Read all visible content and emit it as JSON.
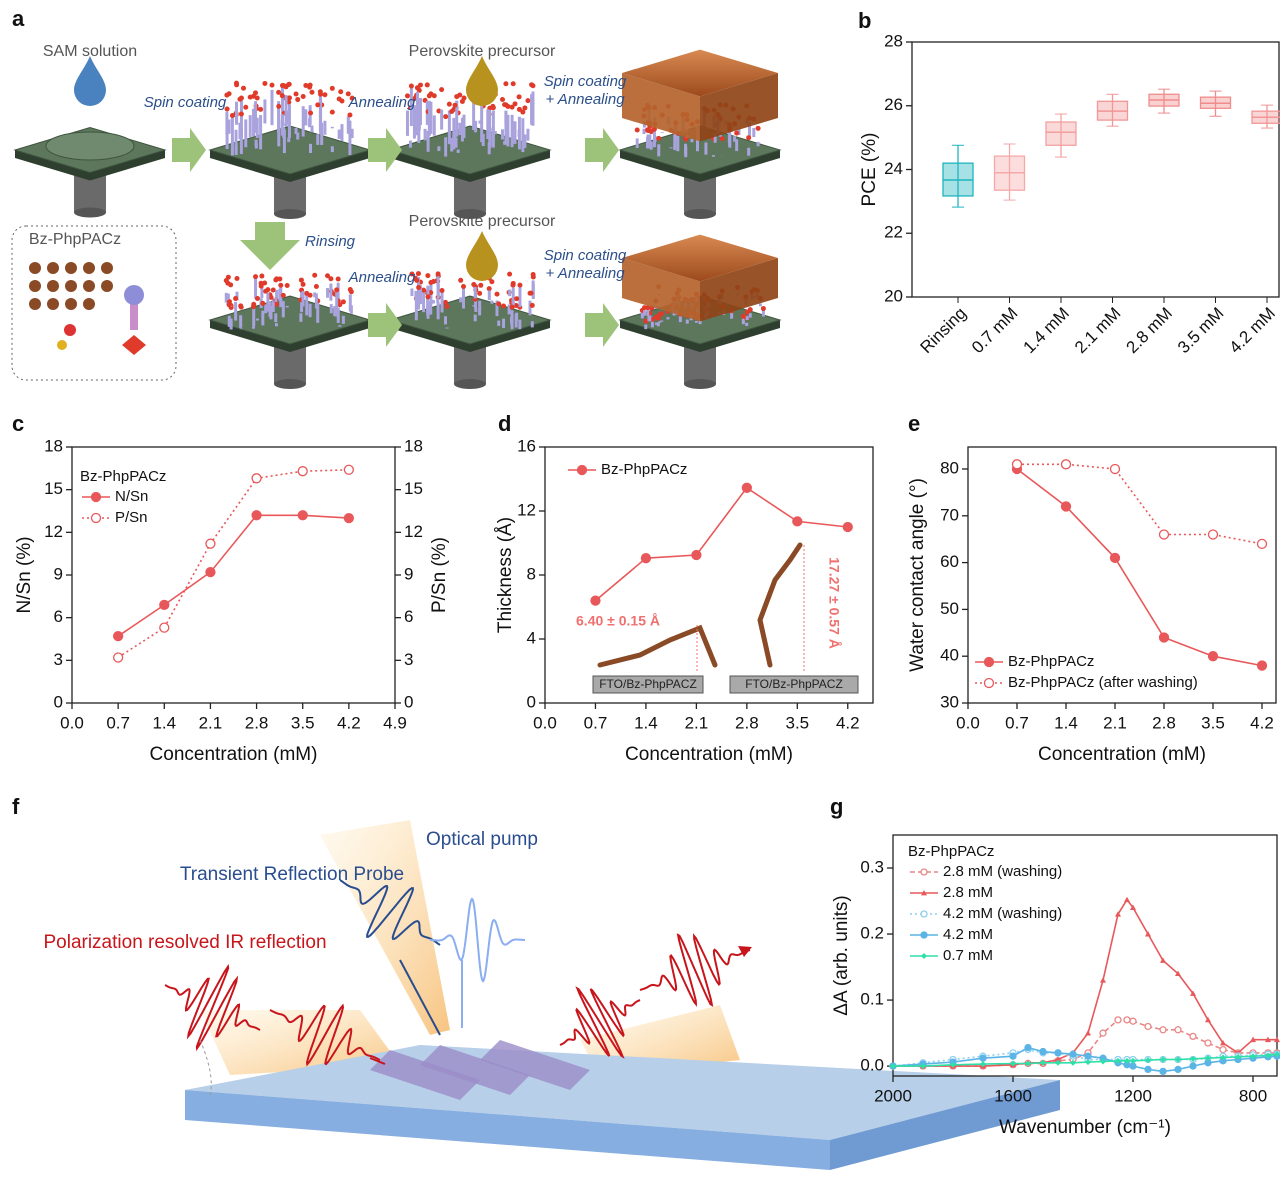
{
  "diagrams": {
    "a": {
      "label": "a",
      "texts": [
        "SAM solution",
        "Spin coating",
        "Annealing",
        "Perovskite precursor",
        "Spin coating",
        "+ Annealing",
        "Bz-PhpPACz",
        "Rinsing",
        "Annealing",
        "Perovskite precursor",
        "Spin coating",
        "+ Annealing"
      ]
    },
    "f": {
      "label": "f",
      "texts": [
        "Optical pump",
        "Transient Reflection Probe",
        "Polarization resolved IR reflection"
      ]
    }
  },
  "chart_data": [
    {
      "panel": "b",
      "type": "box",
      "ylabel": "PCE (%)",
      "categories": [
        "Rinsing",
        "0.7 mM",
        "1.4 mM",
        "2.1 mM",
        "2.8 mM",
        "3.5 mM",
        "4.2 mM"
      ],
      "boxes": [
        {
          "min": 22.82,
          "q1": 23.17,
          "median": 23.67,
          "q3": 24.2,
          "max": 24.76
        },
        {
          "min": 23.04,
          "q1": 23.35,
          "median": 23.9,
          "q3": 24.42,
          "max": 24.8
        },
        {
          "min": 24.39,
          "q1": 24.76,
          "median": 25.17,
          "q3": 25.49,
          "max": 25.74
        },
        {
          "min": 25.36,
          "q1": 25.55,
          "median": 25.83,
          "q3": 26.14,
          "max": 26.36
        },
        {
          "min": 25.77,
          "q1": 25.99,
          "median": 26.18,
          "q3": 26.36,
          "max": 26.52
        },
        {
          "min": 25.67,
          "q1": 25.92,
          "median": 26.08,
          "q3": 26.27,
          "max": 26.46
        },
        {
          "min": 25.3,
          "q1": 25.45,
          "median": 25.64,
          "q3": 25.83,
          "max": 26.02
        }
      ],
      "colors": [
        "#1fb5bf",
        "#f4a9a9",
        "#f3a0a0",
        "#f29696",
        "#f08c8c",
        "#f08c8c",
        "#f29696"
      ],
      "ylim": [
        20,
        28
      ],
      "yticks": [
        20,
        22,
        24,
        26,
        28
      ]
    },
    {
      "panel": "c",
      "type": "line",
      "xlabel": "Concentration (mM)",
      "ylabel": "N/Sn (%)",
      "y2label": "P/Sn (%)",
      "legend_title": "Bz-PhpPACz",
      "legend": "upper left",
      "x": [
        0.7,
        1.4,
        2.1,
        2.8,
        3.5,
        4.2
      ],
      "series": [
        {
          "name": "N/Sn",
          "color": "#e8585a",
          "marker": "circle",
          "line_style": "solid",
          "values": [
            4.7,
            6.9,
            9.2,
            13.2,
            13.2,
            13.0
          ]
        },
        {
          "name": "P/Sn",
          "color": "#e8585a",
          "marker": "circle-open",
          "line_style": "dotted",
          "axis": "y2",
          "values": [
            3.2,
            5.3,
            11.2,
            15.8,
            16.3,
            16.4
          ]
        }
      ],
      "xlim": [
        0,
        4.9
      ],
      "xticks": [
        {
          "value": 0,
          "label": "0.0"
        },
        0.7,
        1.4,
        2.1,
        2.8,
        3.5,
        4.2,
        4.9
      ],
      "ylim": [
        0,
        18
      ],
      "yticks": [
        0,
        3,
        6,
        9,
        12,
        15,
        18
      ],
      "y2lim": [
        0,
        18
      ],
      "y2ticks": [
        0,
        3,
        6,
        9,
        12,
        15,
        18
      ]
    },
    {
      "panel": "d",
      "type": "line",
      "xlabel": "Concentration (mM)",
      "ylabel": "Thickness (Å)",
      "legend": "upper left",
      "x": [
        0.7,
        1.4,
        2.1,
        2.8,
        3.5,
        4.2
      ],
      "series": [
        {
          "name": "Bz-PhpPACz",
          "color": "#e8585a",
          "marker": "circle",
          "line_style": "solid",
          "values": [
            6.4,
            9.05,
            9.25,
            13.45,
            11.35,
            11.0
          ]
        }
      ],
      "annotations": [
        "6.40 ± 0.15 Å",
        "17.27 ± 0.57 Å",
        "FTO/Bz-PhpPACZ",
        "FTO/Bz-PhpPACZ"
      ],
      "xlim": [
        0,
        4.55
      ],
      "xticks": [
        {
          "value": 0,
          "label": "0.0"
        },
        0.7,
        1.4,
        2.1,
        2.8,
        3.5,
        4.2
      ],
      "ylim": [
        0,
        16
      ],
      "yticks": [
        0,
        4,
        8,
        12,
        16
      ]
    },
    {
      "panel": "e",
      "type": "line",
      "xlabel": "Concentration (mM)",
      "ylabel": "Water contact angle (°)",
      "legend": "lower left",
      "x": [
        0.7,
        1.4,
        2.1,
        2.8,
        3.5,
        4.2
      ],
      "series": [
        {
          "name": "Bz-PhpPACz",
          "color": "#e8585a",
          "marker": "circle",
          "line_style": "solid",
          "values": [
            80,
            72,
            61,
            44,
            40,
            38
          ]
        },
        {
          "name": "Bz-PhpPACz (after washing)",
          "color": "#e8585a",
          "marker": "circle-open",
          "line_style": "dotted",
          "values": [
            81,
            81,
            80,
            66,
            66,
            64
          ]
        }
      ],
      "xlim": [
        0,
        4.4
      ],
      "xticks": [
        {
          "value": 0,
          "label": "0.0"
        },
        0.7,
        1.4,
        2.1,
        2.8,
        3.5,
        4.2
      ],
      "ylim": [
        30,
        84.7
      ],
      "yticks": [
        30,
        40,
        50,
        60,
        70,
        80
      ]
    },
    {
      "panel": "g",
      "type": "line",
      "xlabel": "Wavenumber (cm⁻¹)",
      "ylabel": "ΔA (arb. units)",
      "legend_title": "Bz-PhpPACz",
      "legend": "upper left",
      "x": [
        2000,
        1900,
        1800,
        1700,
        1600,
        1550,
        1500,
        1450,
        1400,
        1350,
        1300,
        1250,
        1220,
        1200,
        1150,
        1100,
        1050,
        1000,
        950,
        900,
        850,
        800,
        750,
        720
      ],
      "series": [
        {
          "name": "2.8 mM (washing)",
          "color": "#e98686",
          "marker": "circle-open",
          "line_style": "dashed",
          "values": [
            0,
            0,
            0,
            0,
            0.002,
            0.004,
            0.004,
            0.008,
            0.01,
            0.02,
            0.05,
            0.07,
            0.07,
            0.068,
            0.06,
            0.055,
            0.055,
            0.045,
            0.035,
            0.025,
            0.02,
            0.02,
            0.02,
            0.02
          ]
        },
        {
          "name": "2.8 mM",
          "color": "#e8585a",
          "marker": "triangle",
          "line_style": "solid",
          "values": [
            0,
            0,
            0,
            0,
            0.002,
            0.005,
            0.005,
            0.01,
            0.02,
            0.05,
            0.13,
            0.23,
            0.252,
            0.24,
            0.2,
            0.16,
            0.14,
            0.11,
            0.07,
            0.035,
            0.02,
            0.04,
            0.04,
            0.04
          ]
        },
        {
          "name": "4.2 mM (washing)",
          "color": "#8ccfef",
          "marker": "circle-open",
          "line_style": "dotted",
          "values": [
            0,
            0.005,
            0.01,
            0.015,
            0.02,
            0.025,
            0.02,
            0.02,
            0.015,
            0.01,
            0.01,
            0.01,
            0.01,
            0.01,
            0.01,
            0.01,
            0.01,
            0.01,
            0.012,
            0.015,
            0.015,
            0.017,
            0.018,
            0.018
          ]
        },
        {
          "name": "4.2 mM",
          "color": "#5ab4e6",
          "marker": "circle",
          "line_style": "solid",
          "values": [
            0,
            0.003,
            0.006,
            0.012,
            0.015,
            0.028,
            0.022,
            0.02,
            0.018,
            0.015,
            0.012,
            0.005,
            0.002,
            0,
            -0.005,
            -0.008,
            -0.005,
            0,
            0.005,
            0.008,
            0.01,
            0.012,
            0.014,
            0.015
          ]
        },
        {
          "name": "0.7 mM",
          "color": "#2ee0a8",
          "marker": "diamond",
          "line_style": "solid",
          "values": [
            0,
            0,
            0.002,
            0.003,
            0.004,
            0.004,
            0.005,
            0.005,
            0.005,
            0.006,
            0.007,
            0.008,
            0.008,
            0.008,
            0.009,
            0.01,
            0.01,
            0.011,
            0.012,
            0.013,
            0.014,
            0.015,
            0.016,
            0.018
          ]
        }
      ],
      "xlim": [
        2000,
        720
      ],
      "xticks": [
        2000,
        1600,
        1200,
        800
      ],
      "ylim": [
        -0.015,
        0.35
      ],
      "yticks": [
        {
          "value": 0,
          "label": "0.0"
        },
        0.1,
        0.2,
        0.3
      ]
    }
  ]
}
